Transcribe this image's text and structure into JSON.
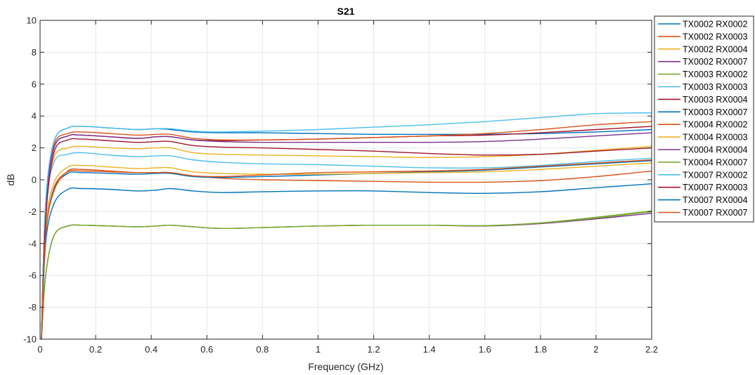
{
  "chart_data": {
    "type": "line",
    "title": "S21",
    "xlabel": "Frequency (GHz)",
    "ylabel": "dB",
    "xlim": [
      0,
      2.2
    ],
    "ylim": [
      -10,
      10
    ],
    "xticks": [
      "0",
      "0.2",
      "0.4",
      "0.6",
      "0.8",
      "1",
      "1.2",
      "1.4",
      "1.6",
      "1.8",
      "2",
      "2.2"
    ],
    "yticks": [
      "-10",
      "-8",
      "-6",
      "-4",
      "-2",
      "0",
      "2",
      "4",
      "6",
      "8",
      "10"
    ],
    "grid": true,
    "legend_position": "outside-right",
    "series": [
      {
        "name": "TX0002 RX0002",
        "color": "#0072BD",
        "x": [
          0.005,
          0.02,
          0.05,
          0.1,
          0.15,
          0.25,
          0.35,
          0.42,
          0.47,
          0.55,
          0.65,
          0.8,
          1.0,
          1.2,
          1.4,
          1.6,
          1.8,
          2.0,
          2.2
        ],
        "y": [
          -10,
          -1.5,
          2.4,
          3.25,
          3.35,
          3.25,
          3.15,
          3.2,
          3.15,
          3.0,
          2.95,
          2.95,
          2.9,
          2.85,
          2.85,
          2.85,
          2.9,
          3.0,
          3.15
        ]
      },
      {
        "name": "TX0002 RX0003",
        "color": "#D95319",
        "x": [
          0.005,
          0.02,
          0.05,
          0.1,
          0.15,
          0.25,
          0.35,
          0.42,
          0.47,
          0.55,
          0.65,
          0.8,
          1.0,
          1.2,
          1.4,
          1.6,
          1.8,
          2.0,
          2.2
        ],
        "y": [
          -10,
          -3.5,
          -0.5,
          0.5,
          0.55,
          0.5,
          0.45,
          0.45,
          0.45,
          0.25,
          0.1,
          0.0,
          -0.05,
          -0.1,
          -0.15,
          -0.15,
          -0.05,
          0.2,
          0.55
        ]
      },
      {
        "name": "TX0002 RX0004",
        "color": "#EDB120",
        "x": [
          0.005,
          0.02,
          0.05,
          0.1,
          0.15,
          0.25,
          0.35,
          0.42,
          0.47,
          0.55,
          0.65,
          0.8,
          1.0,
          1.2,
          1.4,
          1.6,
          1.8,
          2.0,
          2.2
        ],
        "y": [
          -10,
          -2.0,
          1.4,
          2.0,
          2.1,
          2.0,
          1.95,
          2.0,
          2.0,
          1.7,
          1.6,
          1.55,
          1.5,
          1.45,
          1.4,
          1.45,
          1.6,
          1.85,
          2.1
        ]
      },
      {
        "name": "TX0002 RX0007",
        "color": "#7E2F8E",
        "x": [
          0.005,
          0.02,
          0.05,
          0.1,
          0.15,
          0.25,
          0.35,
          0.42,
          0.47,
          0.55,
          0.65,
          0.8,
          1.0,
          1.2,
          1.4,
          1.6,
          1.8,
          2.0,
          2.2
        ],
        "y": [
          -10,
          -6,
          -3.5,
          -2.9,
          -2.85,
          -2.9,
          -2.95,
          -2.9,
          -2.85,
          -2.95,
          -3.05,
          -3.0,
          -2.9,
          -2.85,
          -2.85,
          -2.9,
          -2.75,
          -2.45,
          -2.1
        ]
      },
      {
        "name": "TX0003 RX0002",
        "color": "#77AC30",
        "x": [
          0.005,
          0.02,
          0.05,
          0.1,
          0.15,
          0.25,
          0.35,
          0.42,
          0.47,
          0.55,
          0.65,
          0.8,
          1.0,
          1.2,
          1.4,
          1.6,
          1.8,
          2.0,
          2.2
        ],
        "y": [
          -10,
          -6,
          -3.5,
          -2.9,
          -2.85,
          -2.9,
          -2.95,
          -2.9,
          -2.85,
          -2.95,
          -3.05,
          -3.0,
          -2.9,
          -2.85,
          -2.85,
          -2.88,
          -2.7,
          -2.35,
          -1.95
        ]
      },
      {
        "name": "TX0003 RX0003",
        "color": "#4DBEEE",
        "x": [
          0.005,
          0.02,
          0.05,
          0.1,
          0.15,
          0.25,
          0.35,
          0.42,
          0.47,
          0.55,
          0.65,
          0.8,
          1.0,
          1.2,
          1.4,
          1.6,
          1.8,
          2.0,
          2.2
        ],
        "y": [
          -10,
          -2.0,
          1.1,
          1.6,
          1.7,
          1.55,
          1.45,
          1.5,
          1.5,
          1.25,
          1.1,
          1.0,
          0.95,
          0.85,
          0.75,
          0.75,
          0.9,
          1.15,
          1.35
        ]
      },
      {
        "name": "TX0003 RX0004",
        "color": "#A2142F",
        "x": [
          0.005,
          0.02,
          0.05,
          0.1,
          0.15,
          0.25,
          0.35,
          0.42,
          0.47,
          0.55,
          0.65,
          0.8,
          1.0,
          1.2,
          1.4,
          1.6,
          1.8,
          2.0,
          2.2
        ],
        "y": [
          -10,
          -1.8,
          2.0,
          2.75,
          2.8,
          2.7,
          2.6,
          2.7,
          2.7,
          2.5,
          2.45,
          2.5,
          2.55,
          2.65,
          2.75,
          2.8,
          2.95,
          3.15,
          3.35
        ]
      },
      {
        "name": "TX0003 RX0007",
        "color": "#0072BD",
        "x": [
          0.005,
          0.02,
          0.05,
          0.1,
          0.15,
          0.25,
          0.35,
          0.42,
          0.47,
          0.55,
          0.65,
          0.8,
          1.0,
          1.2,
          1.4,
          1.6,
          1.8,
          2.0,
          2.2
        ],
        "y": [
          -10,
          -3.5,
          -0.6,
          0.4,
          0.45,
          0.4,
          0.35,
          0.4,
          0.4,
          0.2,
          0.15,
          0.2,
          0.3,
          0.4,
          0.5,
          0.6,
          0.8,
          1.0,
          1.2
        ]
      },
      {
        "name": "TX0004 RX0002",
        "color": "#D95319",
        "x": [
          0.005,
          0.02,
          0.05,
          0.1,
          0.15,
          0.25,
          0.35,
          0.42,
          0.47,
          0.55,
          0.65,
          0.8,
          1.0,
          1.2,
          1.4,
          1.6,
          1.8,
          2.0,
          2.2
        ],
        "y": [
          -10,
          -1.5,
          2.2,
          2.9,
          3.0,
          2.9,
          2.8,
          2.85,
          2.85,
          2.6,
          2.5,
          2.5,
          2.55,
          2.65,
          2.75,
          2.9,
          3.15,
          3.45,
          3.65
        ]
      },
      {
        "name": "TX0004 RX0003",
        "color": "#EDB120",
        "x": [
          0.005,
          0.02,
          0.05,
          0.1,
          0.15,
          0.25,
          0.35,
          0.42,
          0.47,
          0.55,
          0.65,
          0.8,
          1.0,
          1.2,
          1.4,
          1.6,
          1.8,
          2.0,
          2.2
        ],
        "y": [
          -10,
          -3.0,
          -0.2,
          0.8,
          0.9,
          0.8,
          0.7,
          0.75,
          0.75,
          0.5,
          0.4,
          0.35,
          0.35,
          0.4,
          0.45,
          0.5,
          0.65,
          0.85,
          1.05
        ]
      },
      {
        "name": "TX0004 RX0004",
        "color": "#7E2F8E",
        "x": [
          0.005,
          0.02,
          0.05,
          0.1,
          0.15,
          0.25,
          0.35,
          0.42,
          0.47,
          0.55,
          0.65,
          0.8,
          1.0,
          1.2,
          1.4,
          1.6,
          1.8,
          2.0,
          2.2
        ],
        "y": [
          -10,
          -1.8,
          2.0,
          2.75,
          2.8,
          2.7,
          2.6,
          2.7,
          2.7,
          2.5,
          2.4,
          2.35,
          2.35,
          2.35,
          2.35,
          2.4,
          2.55,
          2.75,
          2.95
        ]
      },
      {
        "name": "TX0004 RX0007",
        "color": "#77AC30",
        "x": [
          0.005,
          0.02,
          0.05,
          0.1,
          0.15,
          0.25,
          0.35,
          0.42,
          0.47,
          0.55,
          0.65,
          0.8,
          1.0,
          1.2,
          1.4,
          1.6,
          1.8,
          2.0,
          2.2
        ],
        "y": [
          -10,
          -6,
          -3.5,
          -2.9,
          -2.85,
          -2.9,
          -2.95,
          -2.9,
          -2.85,
          -2.95,
          -3.05,
          -3.0,
          -2.9,
          -2.85,
          -2.85,
          -2.88,
          -2.72,
          -2.4,
          -2.0
        ]
      },
      {
        "name": "TX0007 RX0002",
        "color": "#4DBEEE",
        "x": [
          0.005,
          0.02,
          0.05,
          0.1,
          0.15,
          0.25,
          0.35,
          0.42,
          0.47,
          0.55,
          0.65,
          0.8,
          1.0,
          1.2,
          1.4,
          1.6,
          1.8,
          2.0,
          2.2
        ],
        "y": [
          -10,
          -1.5,
          2.4,
          3.25,
          3.35,
          3.25,
          3.15,
          3.2,
          3.2,
          3.05,
          3.0,
          3.05,
          3.15,
          3.3,
          3.45,
          3.65,
          3.9,
          4.15,
          4.2
        ]
      },
      {
        "name": "TX0007 RX0003",
        "color": "#A2142F",
        "x": [
          0.005,
          0.02,
          0.05,
          0.1,
          0.15,
          0.25,
          0.35,
          0.42,
          0.47,
          0.55,
          0.65,
          0.8,
          1.0,
          1.2,
          1.4,
          1.6,
          1.8,
          2.0,
          2.2
        ],
        "y": [
          -10,
          -2.5,
          1.7,
          2.5,
          2.55,
          2.45,
          2.35,
          2.4,
          2.4,
          2.15,
          2.05,
          2.0,
          1.9,
          1.8,
          1.65,
          1.55,
          1.6,
          1.8,
          2.0
        ]
      },
      {
        "name": "TX0007 RX0004",
        "color": "#0072BD",
        "x": [
          0.005,
          0.02,
          0.05,
          0.1,
          0.15,
          0.25,
          0.35,
          0.42,
          0.47,
          0.55,
          0.65,
          0.8,
          1.0,
          1.2,
          1.4,
          1.6,
          1.8,
          2.0,
          2.2
        ],
        "y": [
          -10,
          -4.0,
          -1.5,
          -0.6,
          -0.55,
          -0.6,
          -0.7,
          -0.65,
          -0.55,
          -0.7,
          -0.8,
          -0.75,
          -0.7,
          -0.7,
          -0.8,
          -0.85,
          -0.75,
          -0.5,
          -0.25
        ]
      },
      {
        "name": "TX0007 RX0007",
        "color": "#D95319",
        "x": [
          0.005,
          0.02,
          0.05,
          0.1,
          0.15,
          0.25,
          0.35,
          0.42,
          0.47,
          0.55,
          0.65,
          0.8,
          1.0,
          1.2,
          1.4,
          1.6,
          1.8,
          2.0,
          2.2
        ],
        "y": [
          -10,
          -3.5,
          -0.7,
          0.55,
          0.65,
          0.55,
          0.45,
          0.45,
          0.45,
          0.25,
          0.2,
          0.3,
          0.45,
          0.5,
          0.55,
          0.65,
          0.85,
          1.05,
          1.25
        ]
      }
    ]
  }
}
